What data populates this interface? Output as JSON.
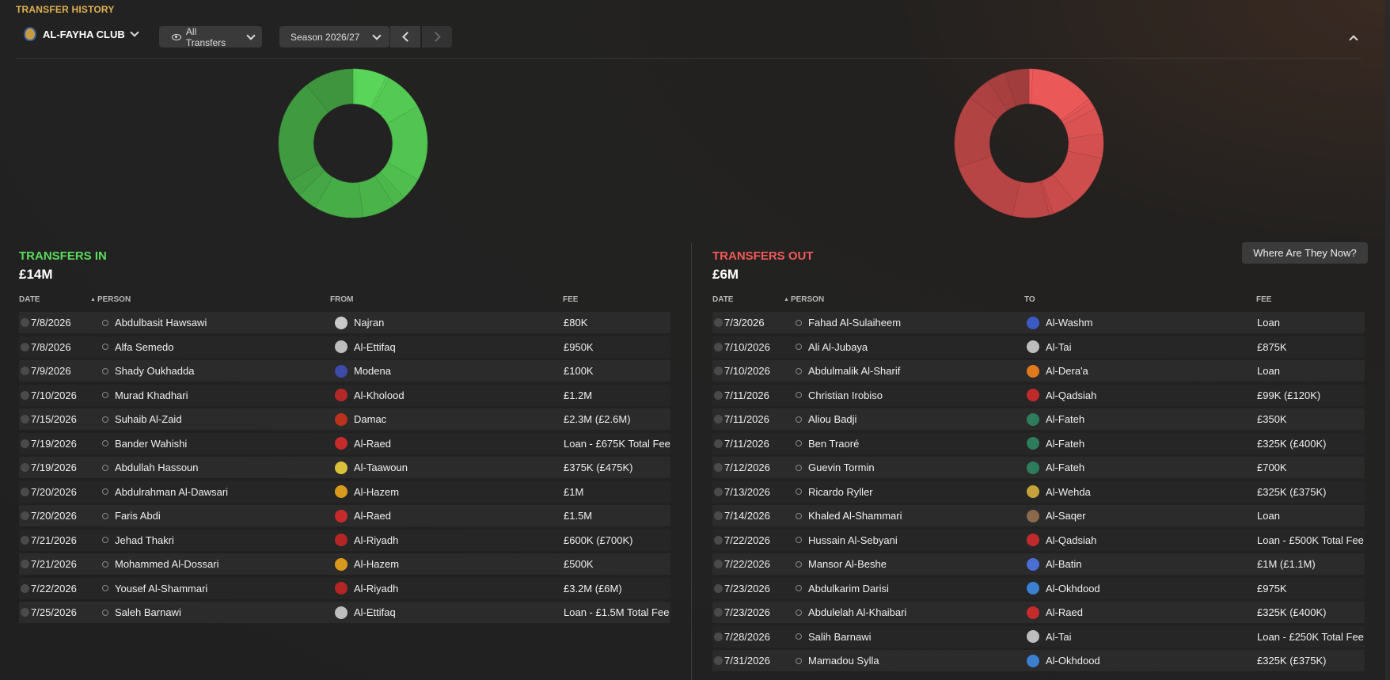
{
  "header": {
    "page_title": "TRANSFER HISTORY",
    "club_name": "AL-FAYHA CLUB",
    "filter_label": "All Transfers",
    "season_label": "Season 2026/27",
    "where_button": "Where Are They Now?"
  },
  "colors": {
    "accent_gold": "#e0b252",
    "in_green": "#5bdc5b",
    "out_red": "#f05a5a"
  },
  "transfers_in": {
    "title": "TRANSFERS IN",
    "total": "£14M",
    "columns": [
      "DATE",
      "PERSON",
      "FROM",
      "FEE"
    ],
    "rows": [
      {
        "date": "7/8/2026",
        "person": "Abdulbasit Hawsawi",
        "club": "Najran",
        "fee": "£80K",
        "badge_color": "#c9c9c9"
      },
      {
        "date": "7/8/2026",
        "person": "Alfa Semedo",
        "club": "Al-Ettifaq",
        "fee": "£950K",
        "badge_color": "#bdbdbd"
      },
      {
        "date": "7/9/2026",
        "person": "Shady Oukhadda",
        "club": "Modena",
        "fee": "£100K",
        "badge_color": "#3d4aa8"
      },
      {
        "date": "7/10/2026",
        "person": "Murad Khadhari",
        "club": "Al-Kholood",
        "fee": "£1.2M",
        "badge_color": "#b52828"
      },
      {
        "date": "7/15/2026",
        "person": "Suhaib Al-Zaid",
        "club": "Damac",
        "fee": "£2.3M (£2.6M)",
        "badge_color": "#b8321c"
      },
      {
        "date": "7/19/2026",
        "person": "Bander Wahishi",
        "club": "Al-Raed",
        "fee": "Loan - £675K Total Fee",
        "badge_color": "#c62b2b"
      },
      {
        "date": "7/19/2026",
        "person": "Abdullah Hassoun",
        "club": "Al-Taawoun",
        "fee": "£375K (£475K)",
        "badge_color": "#d8c23a"
      },
      {
        "date": "7/20/2026",
        "person": "Abdulrahman Al-Dawsari",
        "club": "Al-Hazem",
        "fee": "£1M",
        "badge_color": "#d89a1c"
      },
      {
        "date": "7/20/2026",
        "person": "Faris Abdi",
        "club": "Al-Raed",
        "fee": "£1.5M",
        "badge_color": "#c62b2b"
      },
      {
        "date": "7/21/2026",
        "person": "Jehad Thakri",
        "club": "Al-Riyadh",
        "fee": "£600K (£700K)",
        "badge_color": "#b42525"
      },
      {
        "date": "7/21/2026",
        "person": "Mohammed Al-Dossari",
        "club": "Al-Hazem",
        "fee": "£500K",
        "badge_color": "#d89a1c"
      },
      {
        "date": "7/22/2026",
        "person": "Yousef Al-Shammari",
        "club": "Al-Riyadh",
        "fee": "£3.2M (£6M)",
        "badge_color": "#b42525"
      },
      {
        "date": "7/25/2026",
        "person": "Saleh Barnawi",
        "club": "Al-Ettifaq",
        "fee": "Loan - £1.5M Total Fee",
        "badge_color": "#bdbdbd"
      }
    ]
  },
  "transfers_out": {
    "title": "TRANSFERS OUT",
    "total": "£6M",
    "columns": [
      "DATE",
      "PERSON",
      "TO",
      "FEE"
    ],
    "rows": [
      {
        "date": "7/3/2026",
        "person": "Fahad Al-Sulaiheem",
        "club": "Al-Washm",
        "fee": "Loan",
        "badge_color": "#3b5ac4"
      },
      {
        "date": "7/10/2026",
        "person": "Ali Al-Jubaya",
        "club": "Al-Tai",
        "fee": "£875K",
        "badge_color": "#bdbdbd"
      },
      {
        "date": "7/10/2026",
        "person": "Abdulmalik Al-Sharif",
        "club": "Al-Dera'a",
        "fee": "Loan",
        "badge_color": "#e07a1c"
      },
      {
        "date": "7/11/2026",
        "person": "Christian Irobiso",
        "club": "Al-Qadsiah",
        "fee": "£99K (£120K)",
        "badge_color": "#c02a2a"
      },
      {
        "date": "7/11/2026",
        "person": "Aliou Badji",
        "club": "Al-Fateh",
        "fee": "£350K",
        "badge_color": "#2e7d5a"
      },
      {
        "date": "7/11/2026",
        "person": "Ben Traoré",
        "club": "Al-Fateh",
        "fee": "£325K (£400K)",
        "badge_color": "#2e7d5a"
      },
      {
        "date": "7/12/2026",
        "person": "Guevin Tormin",
        "club": "Al-Fateh",
        "fee": "£700K",
        "badge_color": "#2e7d5a"
      },
      {
        "date": "7/13/2026",
        "person": "Ricardo Ryller",
        "club": "Al-Wehda",
        "fee": "£325K (£375K)",
        "badge_color": "#c7a23a"
      },
      {
        "date": "7/14/2026",
        "person": "Khaled Al-Shammari",
        "club": "Al-Saqer",
        "fee": "Loan",
        "badge_color": "#8a6a4a"
      },
      {
        "date": "7/22/2026",
        "person": "Hussain Al-Sebyani",
        "club": "Al-Qadsiah",
        "fee": "Loan - £500K Total Fee",
        "badge_color": "#c02a2a"
      },
      {
        "date": "7/22/2026",
        "person": "Mansor Al-Beshe",
        "club": "Al-Batin",
        "fee": "£1M (£1.1M)",
        "badge_color": "#4a6fd4"
      },
      {
        "date": "7/23/2026",
        "person": "Abdulkarim Darisi",
        "club": "Al-Okhdood",
        "fee": "£975K",
        "badge_color": "#3b7fd0"
      },
      {
        "date": "7/23/2026",
        "person": "Abdulelah Al-Khaibari",
        "club": "Al-Raed",
        "fee": "£325K (£400K)",
        "badge_color": "#c62b2b"
      },
      {
        "date": "7/28/2026",
        "person": "Salih Barnawi",
        "club": "Al-Tai",
        "fee": "Loan - £250K Total Fee",
        "badge_color": "#bdbdbd"
      },
      {
        "date": "7/31/2026",
        "person": "Mamadou Sylla",
        "club": "Al-Okhdood",
        "fee": "£325K (£375K)",
        "badge_color": "#3b7fd0"
      }
    ]
  },
  "chart_data": [
    {
      "type": "pie",
      "name": "transfers-in-donut",
      "color": "#5bdc5b",
      "values": [
        0.08,
        0.95,
        0.1,
        1.2,
        2.3,
        0.675,
        0.375,
        1.0,
        1.5,
        0.6,
        0.5,
        3.2,
        1.5
      ]
    },
    {
      "type": "pie",
      "name": "transfers-out-donut",
      "color": "#f05a5a",
      "values": [
        0.0,
        0.875,
        0.0,
        0.099,
        0.35,
        0.325,
        0.7,
        0.325,
        0.0,
        0.5,
        1.0,
        0.975,
        0.325,
        0.25,
        0.325
      ]
    }
  ]
}
